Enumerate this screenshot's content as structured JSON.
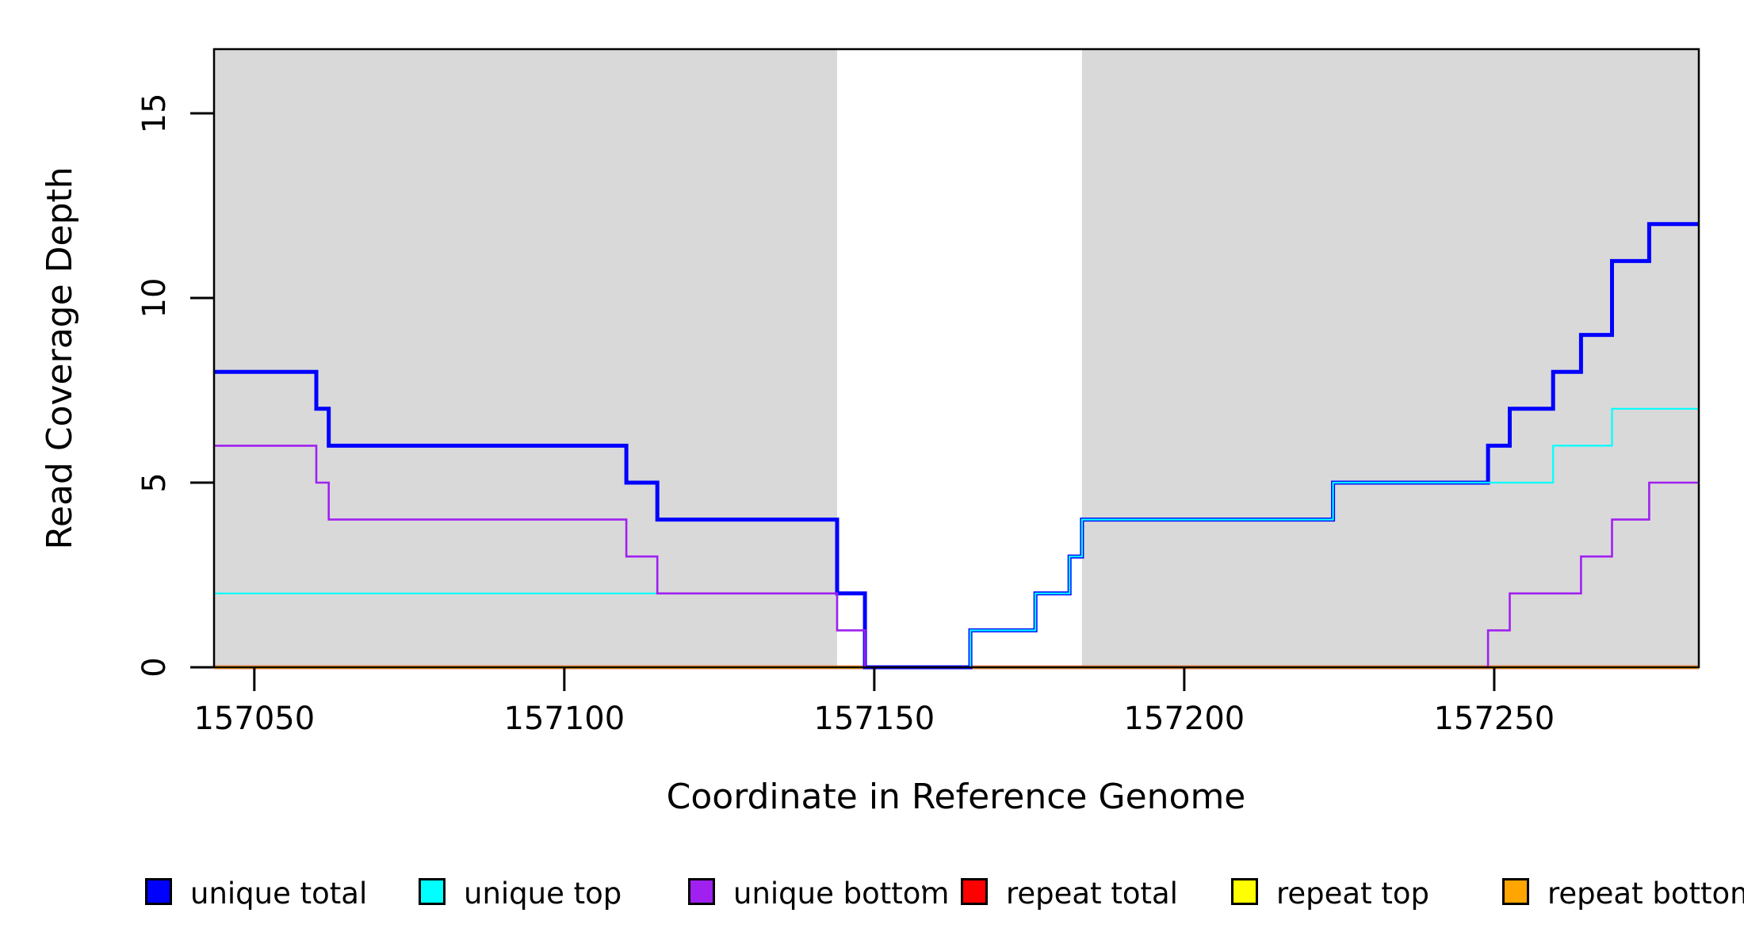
{
  "chart_data": {
    "type": "line",
    "subtype": "step",
    "title": "",
    "xlabel": "Coordinate in Reference Genome",
    "ylabel": "Read Coverage Depth",
    "xlim": [
      157043.5,
      157283
    ],
    "ylim": [
      0,
      16.7
    ],
    "xticks": [
      157050,
      157100,
      157150,
      157200,
      157250
    ],
    "yticks": [
      0,
      5,
      10,
      15
    ],
    "grid": false,
    "background": "#ffffff",
    "plot_box_color": "#000000",
    "shaded_regions": [
      {
        "name": "repeat-region-left",
        "x0": 157043.5,
        "x1": 157144,
        "color": "#d9d9d9"
      },
      {
        "name": "repeat-region-right",
        "x0": 157183.5,
        "x1": 157283,
        "color": "#d9d9d9"
      }
    ],
    "series": [
      {
        "name": "repeat total",
        "color": "#FF0000",
        "width": 4.5,
        "steps": [
          [
            157043.5,
            0
          ]
        ]
      },
      {
        "name": "repeat top",
        "color": "#FFFF00",
        "width": 3.8,
        "steps": [
          [
            157043.5,
            0
          ]
        ]
      },
      {
        "name": "repeat bottom",
        "color": "#FFA500",
        "width": 3.2,
        "steps": [
          [
            157043.5,
            0
          ]
        ]
      },
      {
        "name": "unique total",
        "color": "#0000FF",
        "width": 5,
        "steps": [
          [
            157043.5,
            8
          ],
          [
            157060,
            7
          ],
          [
            157062,
            6
          ],
          [
            157110,
            5
          ],
          [
            157115,
            4
          ],
          [
            157144,
            2
          ],
          [
            157148.5,
            0
          ],
          [
            157165.5,
            1
          ],
          [
            157176,
            2
          ],
          [
            157181.5,
            3
          ],
          [
            157183.5,
            4
          ],
          [
            157224,
            5
          ],
          [
            157249,
            6
          ],
          [
            157252.5,
            7
          ],
          [
            157259.5,
            8
          ],
          [
            157264,
            9
          ],
          [
            157269,
            11
          ],
          [
            157275,
            12
          ]
        ]
      },
      {
        "name": "unique top",
        "color": "#00FFFF",
        "width": 2.2,
        "steps": [
          [
            157043.5,
            2
          ],
          [
            157144,
            1
          ],
          [
            157148.5,
            0
          ],
          [
            157165.5,
            1
          ],
          [
            157176,
            2
          ],
          [
            157181.5,
            3
          ],
          [
            157183.5,
            4
          ],
          [
            157224,
            5
          ],
          [
            157259.5,
            6
          ],
          [
            157269,
            7
          ]
        ]
      },
      {
        "name": "unique bottom",
        "color": "#A020F0",
        "width": 2.6,
        "steps": [
          [
            157043.5,
            6
          ],
          [
            157060,
            5
          ],
          [
            157062,
            4
          ],
          [
            157110,
            3
          ],
          [
            157115,
            2
          ],
          [
            157144,
            1
          ],
          [
            157148.5,
            0
          ],
          [
            157249,
            1
          ],
          [
            157252.5,
            2
          ],
          [
            157264,
            3
          ],
          [
            157269,
            4
          ],
          [
            157275,
            5
          ]
        ]
      }
    ],
    "legend_position": "bottom"
  },
  "legend": {
    "items": [
      {
        "label": "unique total",
        "color": "#0000FF"
      },
      {
        "label": "unique top",
        "color": "#00FFFF"
      },
      {
        "label": "unique bottom",
        "color": "#A020F0"
      },
      {
        "label": "repeat total",
        "color": "#FF0000"
      },
      {
        "label": "repeat top",
        "color": "#FFFF00"
      },
      {
        "label": "repeat bottom",
        "color": "#FFA500"
      }
    ]
  }
}
